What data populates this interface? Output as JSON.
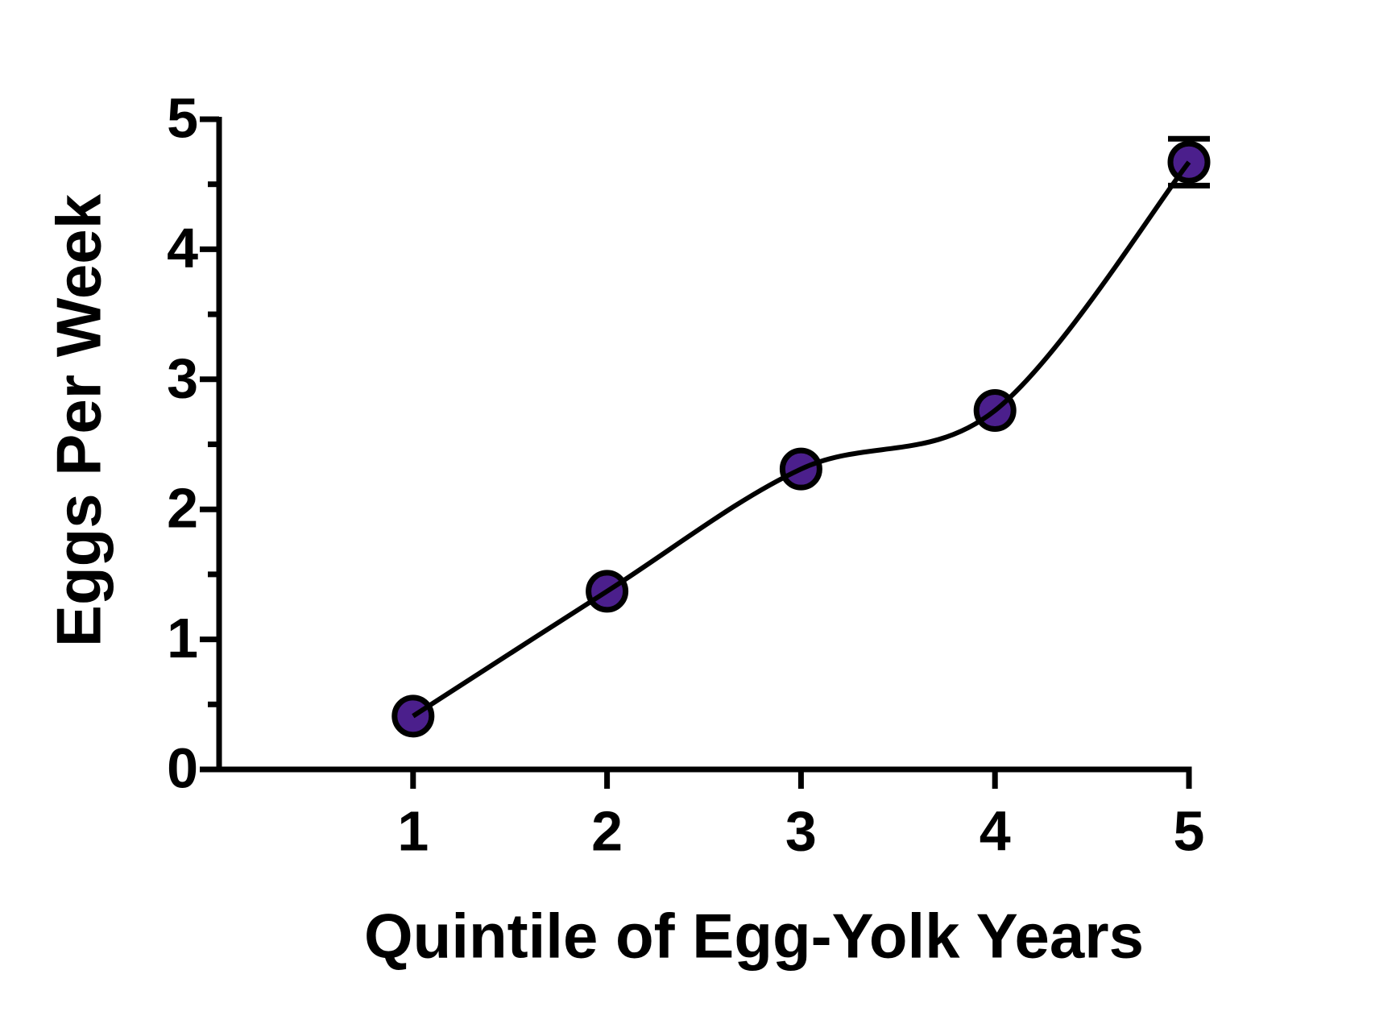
{
  "chart_data": {
    "type": "line",
    "x_label": "Quintile of Egg-Yolk Years",
    "y_label": "Eggs Per Week",
    "x": [
      1,
      2,
      3,
      4,
      5
    ],
    "series": [
      {
        "color": "#4b1f8c",
        "values": [
          0.41,
          1.37,
          2.31,
          2.76,
          4.67
        ],
        "errors": [
          null,
          null,
          null,
          null,
          0.18
        ]
      }
    ],
    "xlim": [
      0,
      5
    ],
    "xticks": [
      1,
      2,
      3,
      4,
      5
    ],
    "ylim": [
      0,
      5
    ],
    "yticks": [
      0,
      1,
      2,
      3,
      4,
      5
    ],
    "yminor_ticks": [
      0.5,
      1.5,
      2.5,
      3.5,
      4.5
    ],
    "smooth": true
  }
}
